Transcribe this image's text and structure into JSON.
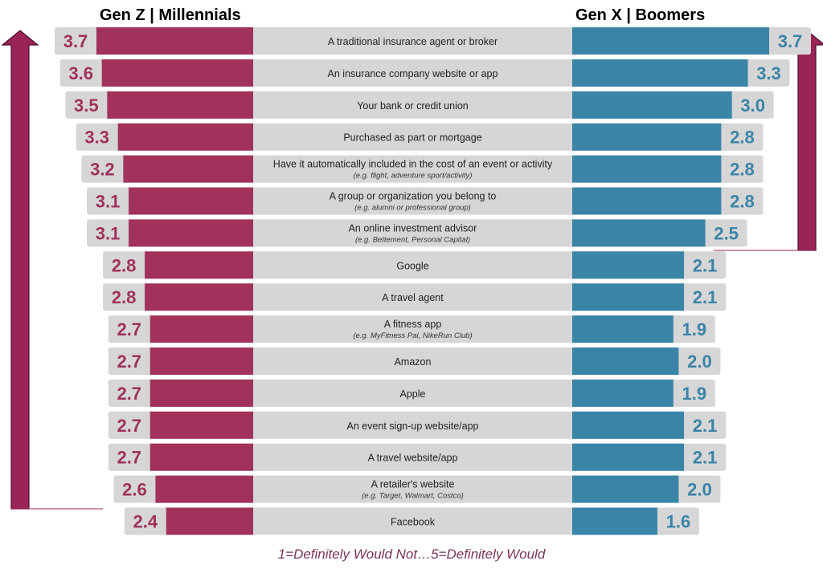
{
  "chart_data": {
    "type": "bar",
    "subtype": "diverging-horizontal",
    "series": [
      {
        "name": "Gen Z | Millennials",
        "side": "left",
        "values": [
          3.7,
          3.6,
          3.5,
          3.3,
          3.2,
          3.1,
          3.1,
          2.8,
          2.8,
          2.7,
          2.7,
          2.7,
          2.7,
          2.7,
          2.6,
          2.4
        ]
      },
      {
        "name": "Gen X | Boomers",
        "side": "right",
        "values": [
          3.7,
          3.3,
          3.0,
          2.8,
          2.8,
          2.8,
          2.5,
          2.1,
          2.1,
          1.9,
          2.0,
          1.9,
          2.1,
          2.1,
          2.0,
          1.6
        ]
      }
    ],
    "categories": [
      {
        "label": "A traditional insurance agent or broker",
        "sub": ""
      },
      {
        "label": "An insurance company website or app",
        "sub": ""
      },
      {
        "label": "Your bank or credit union",
        "sub": ""
      },
      {
        "label": "Purchased as part or mortgage",
        "sub": ""
      },
      {
        "label": "Have it automatically included in the cost of an event or activity",
        "sub": "(e.g. flight, adventure sport/activity)"
      },
      {
        "label": "A group or organization you belong to",
        "sub": "(e.g. alumni or professional group)"
      },
      {
        "label": "An online investment advisor",
        "sub": "(e.g. Bettement, Personal Capital)"
      },
      {
        "label": "Google",
        "sub": ""
      },
      {
        "label": "A travel agent",
        "sub": ""
      },
      {
        "label": "A fitness app",
        "sub": "(e.g. MyFitness Pal, NikeRun Club)"
      },
      {
        "label": "Amazon",
        "sub": ""
      },
      {
        "label": "Apple",
        "sub": ""
      },
      {
        "label": "An event sign-up website/app",
        "sub": ""
      },
      {
        "label": "A travel website/app",
        "sub": ""
      },
      {
        "label": "A retailer's website",
        "sub": "(e.g. Target, Walmart, Costco)"
      },
      {
        "label": "Facebook",
        "sub": ""
      }
    ],
    "footnote": "1=Definitely Would Not…5=Definitely Would",
    "colors": {
      "left": "#a0325c",
      "right": "#3a84a8",
      "track": "#d6d6d6",
      "arrow": "#9a2357"
    },
    "legend": "top"
  }
}
